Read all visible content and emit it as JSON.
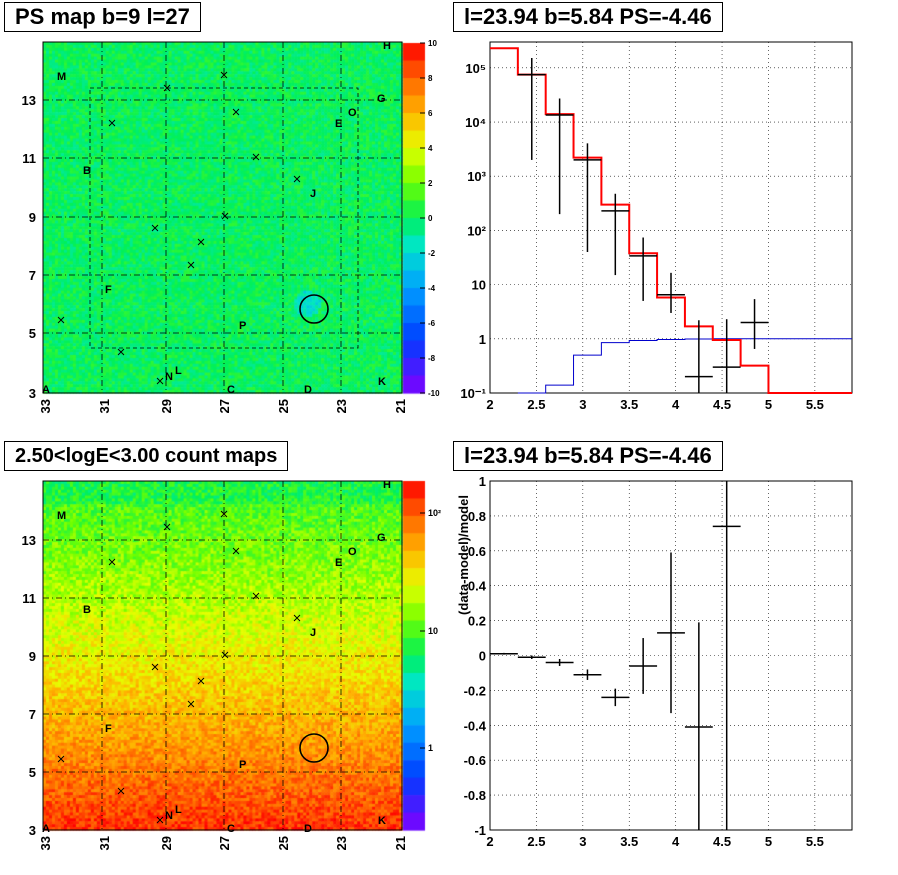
{
  "panels": {
    "ps_map_title": "PS map b=9 l=27",
    "count_map_title": "2.50<logE<3.00 count maps",
    "spectrum_title": "l=23.94 b=5.84 PS=-4.46",
    "residual_title": "l=23.94 b=5.84 PS=-4.46"
  },
  "maps": {
    "x_ticks": [
      "33",
      "31",
      "29",
      "27",
      "25",
      "23",
      "21"
    ],
    "y_ticks": [
      "5",
      "7",
      "9",
      "11",
      "13"
    ],
    "corner_label": "3",
    "ps_colorbar_ticks": [
      "10",
      "8",
      "6",
      "4",
      "2",
      "0",
      "-2",
      "-4",
      "-6",
      "-8",
      "-10"
    ],
    "count_colorbar_ticks": [
      "10²",
      "10",
      "1"
    ],
    "source_letters": [
      "M",
      "H",
      "G",
      "O",
      "E",
      "B",
      "J",
      "F",
      "P",
      "N",
      "L",
      "C",
      "D",
      "K",
      "A"
    ]
  },
  "colors": {
    "model": "#ff0000",
    "data": "#000000",
    "background_component": "#0000cc"
  },
  "chart_data": [
    {
      "type": "line",
      "title": "l=23.94 b=5.84 PS=-4.46",
      "yscale": "log",
      "xlim": [
        2,
        5.9
      ],
      "ylim": [
        0.1,
        300000
      ],
      "x_ticks": [
        "2",
        "2.5",
        "3",
        "3.5",
        "4",
        "4.5",
        "5",
        "5.5"
      ],
      "y_ticks": [
        "10⁻¹",
        "1",
        "10",
        "10²",
        "10³",
        "10⁴",
        "10⁵"
      ],
      "grid": true,
      "series": [
        {
          "type": "step",
          "bin_edges": [
            2.0,
            2.3,
            2.6,
            2.9,
            3.2,
            3.5,
            3.8,
            4.1,
            4.4,
            4.7,
            5.0,
            5.3,
            5.6,
            5.9
          ],
          "values": [
            230000,
            75000,
            14000,
            2200,
            300,
            38,
            5.8,
            1.7,
            0.95,
            0.32,
            0.1,
            0.1,
            0.1
          ]
        },
        {
          "type": "step",
          "bin_edges": [
            2.3,
            2.6,
            2.9,
            3.2,
            3.5,
            3.8,
            4.1,
            4.4,
            4.7,
            5.0,
            5.3,
            5.6,
            5.9
          ],
          "values": [
            0.1,
            0.14,
            0.5,
            0.85,
            0.93,
            0.97,
            0.99,
            1.0,
            1.0,
            1.0,
            1.0,
            1.0
          ]
        },
        {
          "type": "errorbar",
          "x": [
            2.45,
            2.75,
            3.05,
            3.35,
            3.65,
            3.95,
            4.25,
            4.55,
            4.85
          ],
          "y": [
            75000,
            13500,
            2000,
            230,
            34,
            6.5,
            0.2,
            0.3,
            2.0
          ],
          "yerr_low": [
            73000,
            13300,
            1960,
            215,
            29,
            3.5,
            0.18,
            0.28,
            1.35
          ],
          "yerr_high": [
            77000,
            13700,
            2045,
            245,
            40,
            10,
            2.0,
            2.0,
            3.4
          ],
          "xerr": 0.15
        }
      ]
    },
    {
      "type": "scatter",
      "title": "l=23.94 b=5.84 PS=-4.46",
      "ylabel": "(data-model)/model",
      "xlim": [
        2,
        5.9
      ],
      "ylim": [
        -1,
        1
      ],
      "x_ticks": [
        "2",
        "2.5",
        "3",
        "3.5",
        "4",
        "4.5",
        "5",
        "5.5"
      ],
      "y_ticks": [
        "1",
        "0.8",
        "0.6",
        "0.4",
        "0.2",
        "0",
        "-0.2",
        "-0.4",
        "-0.6",
        "-0.8",
        "-1"
      ],
      "grid": true,
      "series": [
        {
          "type": "errorbar",
          "x": [
            2.15,
            2.45,
            2.75,
            3.05,
            3.35,
            3.65,
            3.95,
            4.25,
            4.55
          ],
          "y": [
            0.01,
            -0.01,
            -0.04,
            -0.11,
            -0.24,
            -0.06,
            0.13,
            -0.41,
            0.74
          ],
          "yerr_low": [
            0.005,
            0.01,
            0.02,
            0.03,
            0.05,
            0.16,
            0.46,
            0.6,
            2.0
          ],
          "yerr_high": [
            0.005,
            0.01,
            0.02,
            0.03,
            0.05,
            0.16,
            0.46,
            0.6,
            0.5
          ],
          "xerr": 0.15
        }
      ]
    }
  ]
}
